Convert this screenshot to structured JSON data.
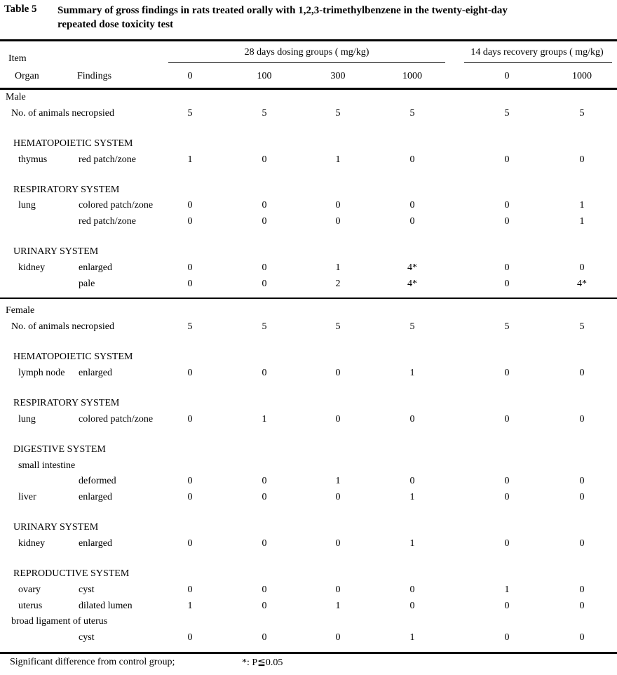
{
  "document": {
    "table_label": "Table 5",
    "title_lines": [
      "Summary of gross findings in rats treated orally with 1,2,3-trimethylbenzene in the twenty-eight-day",
      "repeated dose toxicity test"
    ],
    "footnote": {
      "text": "Significant difference from control group;",
      "key": "*: P≦0.05"
    }
  },
  "table": {
    "item_header": "Item",
    "organ_header": "Organ",
    "findings_header": "Findings",
    "group_headers": [
      {
        "label": "28 days dosing groups ( mg/kg)",
        "doses": [
          "0",
          "100",
          "300",
          "1000"
        ]
      },
      {
        "label": "14 days recovery groups ( mg/kg)",
        "doses": [
          "0",
          "1000"
        ]
      }
    ],
    "rows": [
      {
        "type": "group",
        "label": "Male"
      },
      {
        "type": "full",
        "label": "No. of animals necropsied",
        "values": [
          "5",
          "5",
          "5",
          "5",
          "5",
          "5"
        ]
      },
      {
        "type": "spacer"
      },
      {
        "type": "section",
        "label": "HEMATOPOIETIC SYSTEM"
      },
      {
        "type": "data",
        "organ": "thymus",
        "finding": "red patch/zone",
        "values": [
          "1",
          "0",
          "1",
          "0",
          "0",
          "0"
        ]
      },
      {
        "type": "spacer"
      },
      {
        "type": "section",
        "label": "RESPIRATORY SYSTEM"
      },
      {
        "type": "data",
        "organ": "lung",
        "finding": "colored patch/zone",
        "values": [
          "0",
          "0",
          "0",
          "0",
          "0",
          "1"
        ]
      },
      {
        "type": "data",
        "organ": "",
        "finding": "red patch/zone",
        "values": [
          "0",
          "0",
          "0",
          "0",
          "0",
          "1"
        ]
      },
      {
        "type": "spacer"
      },
      {
        "type": "section",
        "label": "URINARY SYSTEM"
      },
      {
        "type": "data",
        "organ": "kidney",
        "finding": "enlarged",
        "values": [
          "0",
          "0",
          "1",
          "4*",
          "0",
          "0"
        ]
      },
      {
        "type": "data",
        "organ": "",
        "finding": "pale",
        "values": [
          "0",
          "0",
          "2",
          "4*",
          "0",
          "4*"
        ]
      },
      {
        "type": "divider"
      },
      {
        "type": "group",
        "label": "Female"
      },
      {
        "type": "full",
        "label": "No. of animals necropsied",
        "values": [
          "5",
          "5",
          "5",
          "5",
          "5",
          "5"
        ]
      },
      {
        "type": "spacer"
      },
      {
        "type": "section",
        "label": "HEMATOPOIETIC SYSTEM"
      },
      {
        "type": "data",
        "organ": "lymph node",
        "finding": "enlarged",
        "values": [
          "0",
          "0",
          "0",
          "1",
          "0",
          "0"
        ]
      },
      {
        "type": "spacer"
      },
      {
        "type": "section",
        "label": "RESPIRATORY SYSTEM"
      },
      {
        "type": "data",
        "organ": "lung",
        "finding": "colored patch/zone",
        "values": [
          "0",
          "1",
          "0",
          "0",
          "0",
          "0"
        ]
      },
      {
        "type": "spacer"
      },
      {
        "type": "section",
        "label": "DIGESTIVE SYSTEM"
      },
      {
        "type": "data",
        "organ": "small intestine",
        "finding": "",
        "values": []
      },
      {
        "type": "data",
        "organ": "",
        "finding": "deformed",
        "values": [
          "0",
          "0",
          "1",
          "0",
          "0",
          "0"
        ]
      },
      {
        "type": "data",
        "organ": "liver",
        "finding": "enlarged",
        "values": [
          "0",
          "0",
          "0",
          "1",
          "0",
          "0"
        ]
      },
      {
        "type": "spacer"
      },
      {
        "type": "section",
        "label": "URINARY SYSTEM"
      },
      {
        "type": "data",
        "organ": "kidney",
        "finding": "enlarged",
        "values": [
          "0",
          "0",
          "0",
          "1",
          "0",
          "0"
        ]
      },
      {
        "type": "spacer"
      },
      {
        "type": "section",
        "label": "REPRODUCTIVE SYSTEM"
      },
      {
        "type": "data",
        "organ": "ovary",
        "finding": "cyst",
        "values": [
          "0",
          "0",
          "0",
          "0",
          "1",
          "0"
        ]
      },
      {
        "type": "data",
        "organ": "uterus",
        "finding": "dilated lumen",
        "values": [
          "1",
          "0",
          "1",
          "0",
          "0",
          "0"
        ]
      },
      {
        "type": "full",
        "label": "broad ligament of uterus",
        "values": []
      },
      {
        "type": "data",
        "organ": "",
        "finding": "cyst",
        "values": [
          "0",
          "0",
          "0",
          "1",
          "0",
          "0"
        ]
      }
    ]
  }
}
